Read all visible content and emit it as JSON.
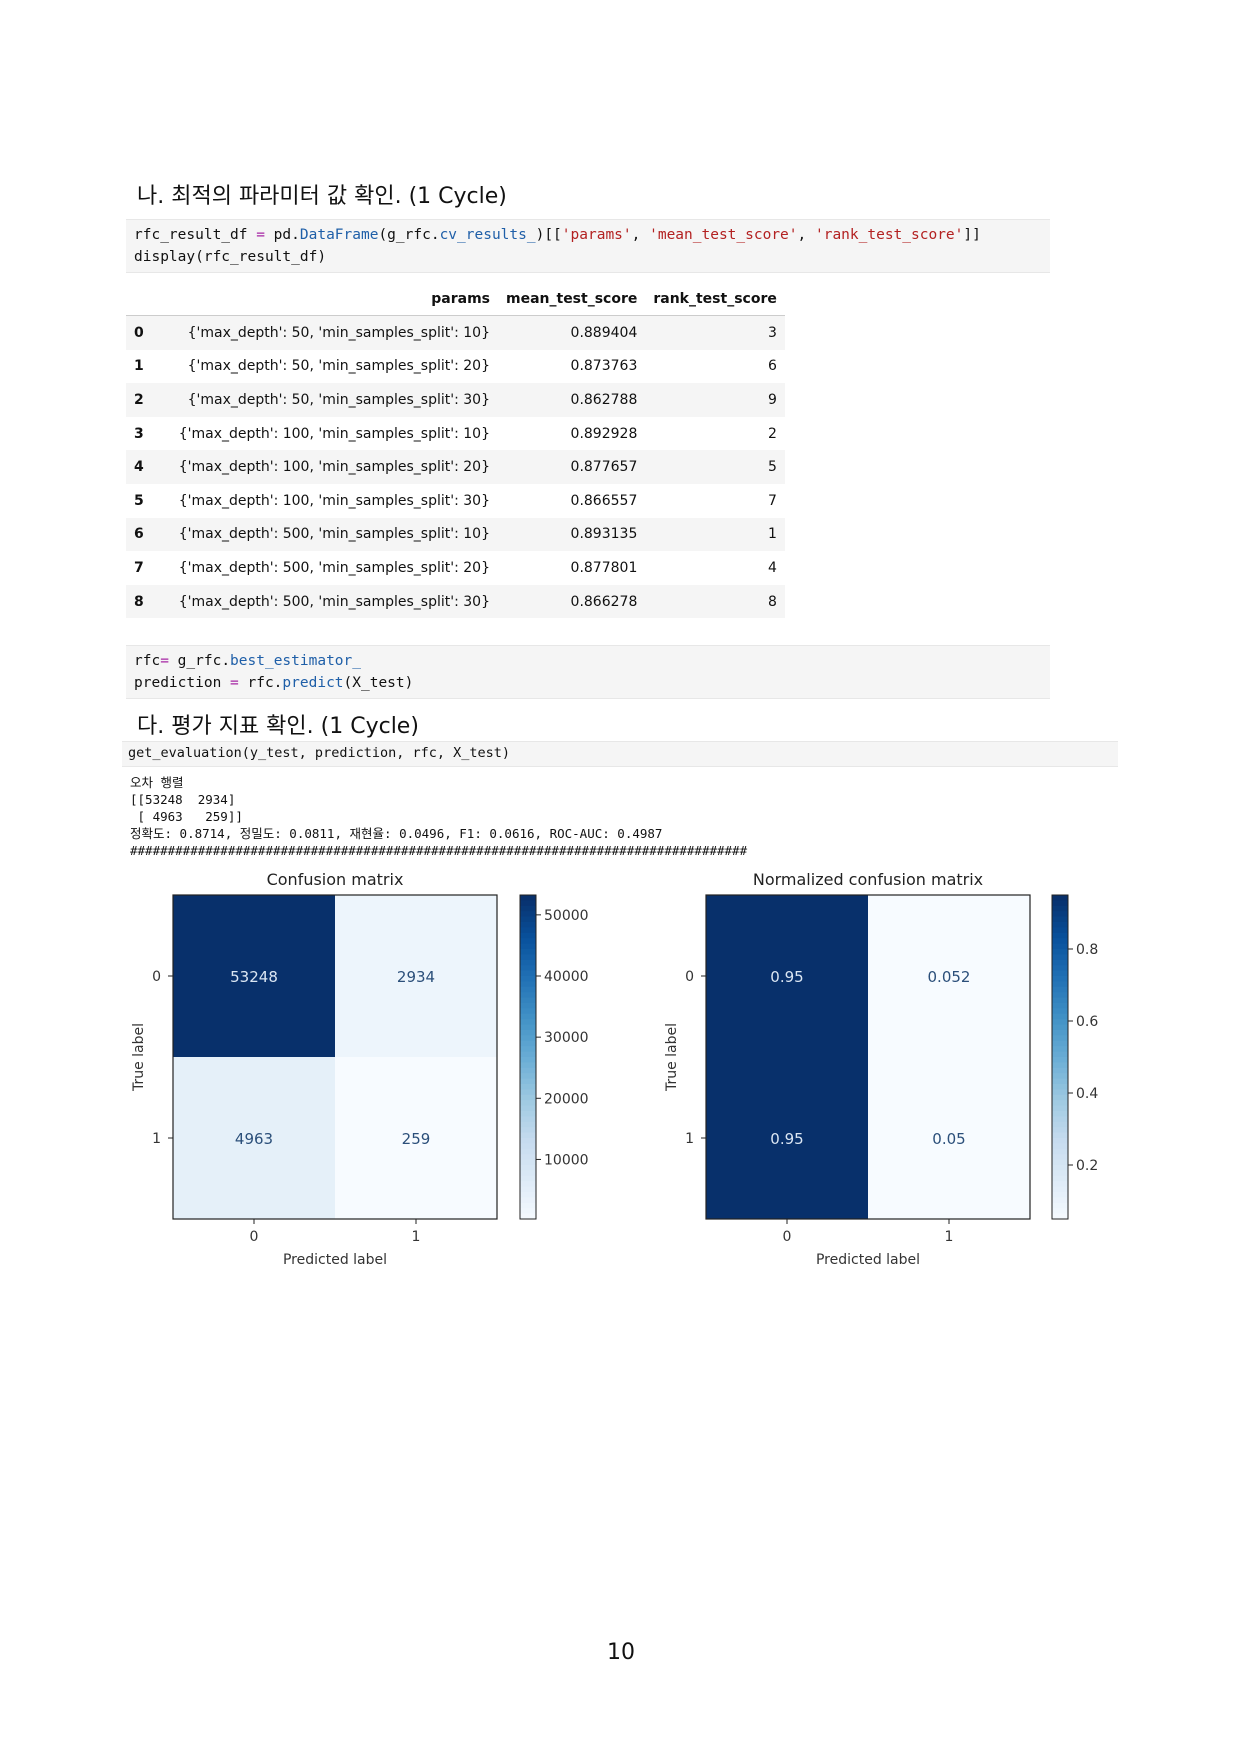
{
  "section1": {
    "title": "나. 최적의 파라미터 값 확인. (1 Cycle)",
    "code_line1_a": "rfc_result_df ",
    "code_line1_eq": "=",
    "code_line1_b": " pd.",
    "code_line1_fn": "DataFrame",
    "code_line1_c": "(g_rfc.",
    "code_line1_attr": "cv_results_",
    "code_line1_d": ")[[",
    "code_line1_s1": "'params'",
    "code_line1_e": ", ",
    "code_line1_s2": "'mean_test_score'",
    "code_line1_f": ", ",
    "code_line1_s3": "'rank_test_score'",
    "code_line1_g": "]]",
    "code_line2": "display(rfc_result_df)"
  },
  "table": {
    "headers": [
      "",
      "params",
      "mean_test_score",
      "rank_test_score"
    ],
    "rows": [
      [
        "0",
        "{'max_depth': 50, 'min_samples_split': 10}",
        "0.889404",
        "3"
      ],
      [
        "1",
        "{'max_depth': 50, 'min_samples_split': 20}",
        "0.873763",
        "6"
      ],
      [
        "2",
        "{'max_depth': 50, 'min_samples_split': 30}",
        "0.862788",
        "9"
      ],
      [
        "3",
        "{'max_depth': 100, 'min_samples_split': 10}",
        "0.892928",
        "2"
      ],
      [
        "4",
        "{'max_depth': 100, 'min_samples_split': 20}",
        "0.877657",
        "5"
      ],
      [
        "5",
        "{'max_depth': 100, 'min_samples_split': 30}",
        "0.866557",
        "7"
      ],
      [
        "6",
        "{'max_depth': 500, 'min_samples_split': 10}",
        "0.893135",
        "1"
      ],
      [
        "7",
        "{'max_depth': 500, 'min_samples_split': 20}",
        "0.877801",
        "4"
      ],
      [
        "8",
        "{'max_depth': 500, 'min_samples_split': 30}",
        "0.866278",
        "8"
      ]
    ]
  },
  "code2": {
    "l1_a": "rfc",
    "l1_eq": "=",
    "l1_b": " g_rfc.",
    "l1_attr": "best_estimator_",
    "l2_a": "prediction ",
    "l2_eq": "=",
    "l2_b": " rfc.",
    "l2_fn": "predict",
    "l2_c": "(X_test)"
  },
  "section2": {
    "title": "다. 평가 지표 확인. (1 Cycle)",
    "code": "get_evaluation(y_test, prediction, rfc, X_test)"
  },
  "output": {
    "line1": "오차 행렬",
    "line2": "[[53248  2934]",
    "line3": " [ 4963   259]]",
    "line4": "정확도: 0.8714, 정밀도: 0.0811, 재현율: 0.0496, F1: 0.0616, ROC-AUC: 0.4987",
    "line5": "##################################################################################"
  },
  "chart_data": [
    {
      "type": "heatmap",
      "title": "Confusion matrix",
      "xlabel": "Predicted label",
      "ylabel": "True label",
      "x_ticks": [
        "0",
        "1"
      ],
      "y_ticks": [
        "0",
        "1"
      ],
      "values": [
        [
          53248,
          2934
        ],
        [
          4963,
          259
        ]
      ],
      "cell_labels": [
        [
          "53248",
          "2934"
        ],
        [
          "4963",
          "259"
        ]
      ],
      "colormap": "Blues",
      "colorbar_ticks": [
        "50000",
        "40000",
        "30000",
        "20000",
        "10000"
      ],
      "colorbar_tick_values": [
        50000,
        40000,
        30000,
        20000,
        10000
      ],
      "vmin": 259,
      "vmax": 53248
    },
    {
      "type": "heatmap",
      "title": "Normalized confusion matrix",
      "xlabel": "Predicted label",
      "ylabel": "True label",
      "x_ticks": [
        "0",
        "1"
      ],
      "y_ticks": [
        "0",
        "1"
      ],
      "values": [
        [
          0.95,
          0.052
        ],
        [
          0.95,
          0.05
        ]
      ],
      "cell_labels": [
        [
          "0.95",
          "0.052"
        ],
        [
          "0.95",
          "0.05"
        ]
      ],
      "colormap": "Blues",
      "colorbar_ticks": [
        "0.8",
        "0.6",
        "0.4",
        "0.2"
      ],
      "colorbar_tick_values": [
        0.8,
        0.6,
        0.4,
        0.2
      ],
      "vmin": 0.05,
      "vmax": 0.95
    }
  ],
  "page_number": "10"
}
